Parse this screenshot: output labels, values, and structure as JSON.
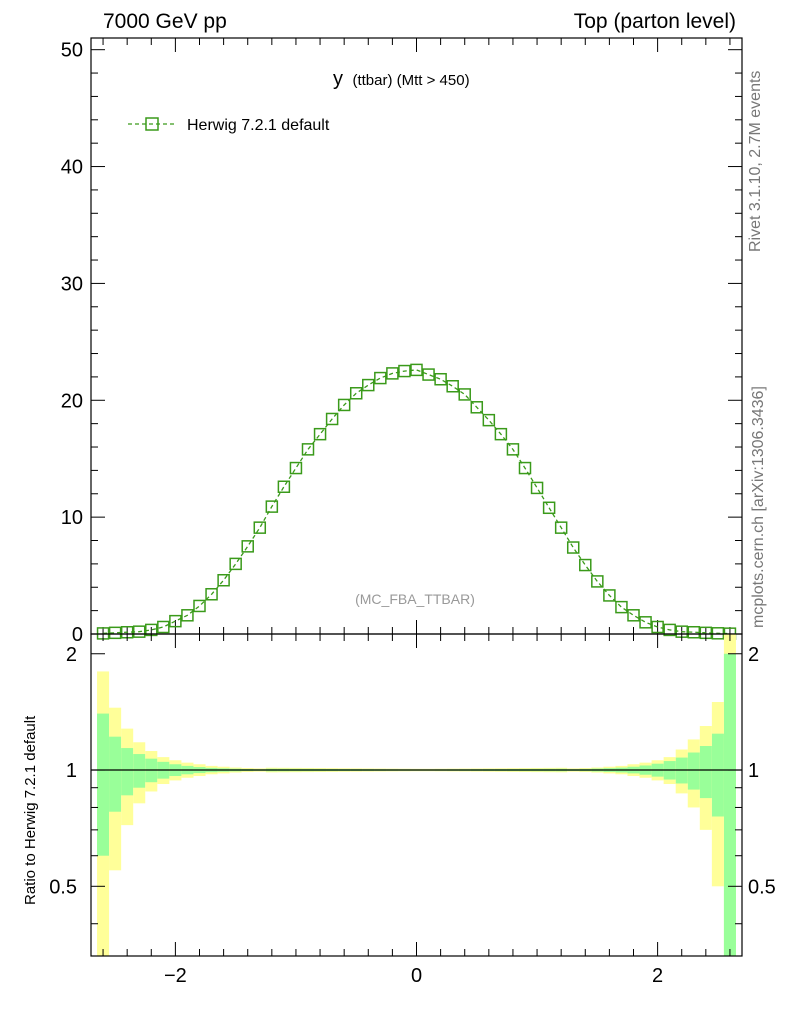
{
  "header": {
    "left": "7000 GeV pp",
    "right": "Top (parton level)"
  },
  "side_labels": {
    "rivet": "Rivet 3.1.10,  2.7M events",
    "mcplots": "mcplots.cern.ch [arXiv:1306.3436]"
  },
  "plot_title": {
    "main": "y",
    "sub": "(ttbar) (Mtt > 450)"
  },
  "watermark": "(MC_FBA_TTBAR)",
  "ratio_ylabel": "Ratio to Herwig 7.2.1 default",
  "colors": {
    "series": "#3a9a1a",
    "band_inner": "#99ff99",
    "band_outer": "#ffff99"
  },
  "chart_data": [
    {
      "type": "line",
      "xlim": [
        -2.7,
        2.7
      ],
      "ylim": [
        0,
        51
      ],
      "yticks": [
        0,
        10,
        20,
        30,
        40,
        50
      ],
      "ytick_labels": [
        "0",
        "10",
        "20",
        "30",
        "40",
        "50"
      ],
      "legend_placement": "top-left",
      "series": [
        {
          "name": "Herwig 7.2.1 default",
          "marker": "open-square",
          "linestyle": "dashed",
          "x": [
            -2.6,
            -2.5,
            -2.4,
            -2.3,
            -2.2,
            -2.1,
            -2.0,
            -1.9,
            -1.8,
            -1.7,
            -1.6,
            -1.5,
            -1.4,
            -1.3,
            -1.2,
            -1.1,
            -1.0,
            -0.9,
            -0.8,
            -0.7,
            -0.6,
            -0.5,
            -0.4,
            -0.3,
            -0.2,
            -0.1,
            0.0,
            0.1,
            0.2,
            0.3,
            0.4,
            0.5,
            0.6,
            0.7,
            0.8,
            0.9,
            1.0,
            1.1,
            1.2,
            1.3,
            1.4,
            1.5,
            1.6,
            1.7,
            1.8,
            1.9,
            2.0,
            2.1,
            2.2,
            2.3,
            2.4,
            2.5,
            2.6
          ],
          "y": [
            0.05,
            0.1,
            0.15,
            0.2,
            0.35,
            0.6,
            1.1,
            1.6,
            2.4,
            3.4,
            4.6,
            6.0,
            7.5,
            9.1,
            10.9,
            12.6,
            14.2,
            15.8,
            17.1,
            18.4,
            19.6,
            20.6,
            21.3,
            21.9,
            22.3,
            22.5,
            22.6,
            22.2,
            21.8,
            21.2,
            20.5,
            19.4,
            18.3,
            17.1,
            15.8,
            14.2,
            12.5,
            10.8,
            9.1,
            7.4,
            5.9,
            4.5,
            3.3,
            2.3,
            1.6,
            1.0,
            0.6,
            0.35,
            0.2,
            0.15,
            0.1,
            0.06,
            0.03
          ]
        }
      ]
    },
    {
      "type": "area",
      "xlim": [
        -2.7,
        2.7
      ],
      "ylim": [
        0.33,
        2.25
      ],
      "yticks": [
        0.5,
        1,
        2
      ],
      "ytick_labels": [
        "0.5",
        "1",
        "2"
      ],
      "xticks": [
        -2,
        0,
        2
      ],
      "xtick_labels": [
        "−2",
        "0",
        "2"
      ],
      "reference_line": 1.0,
      "bins_lo": [
        -2.65,
        -2.55,
        -2.45,
        -2.35,
        -2.25,
        -2.15,
        -2.05,
        -1.95,
        -1.85,
        -1.75,
        -1.65,
        -1.55,
        -1.45,
        -1.35
      ],
      "bins_hi": [
        -2.55,
        -2.45,
        -2.35,
        -2.25,
        -2.15,
        -2.05,
        -1.95,
        -1.85,
        -1.75,
        -1.65,
        -1.55,
        -1.45,
        -1.35,
        -1.25
      ],
      "inner_half_width": [
        0.4,
        0.22,
        0.14,
        0.1,
        0.07,
        0.05,
        0.035,
        0.025,
        0.018,
        0.013,
        0.01,
        0.008,
        0.006,
        0.005
      ],
      "outer_half_width": [
        0.8,
        0.45,
        0.28,
        0.18,
        0.12,
        0.08,
        0.06,
        0.045,
        0.035,
        0.025,
        0.02,
        0.015,
        0.012,
        0.01
      ],
      "upper_outer_right_extra": [
        0.85,
        0.5,
        0.3,
        0.2,
        0.13
      ]
    }
  ]
}
